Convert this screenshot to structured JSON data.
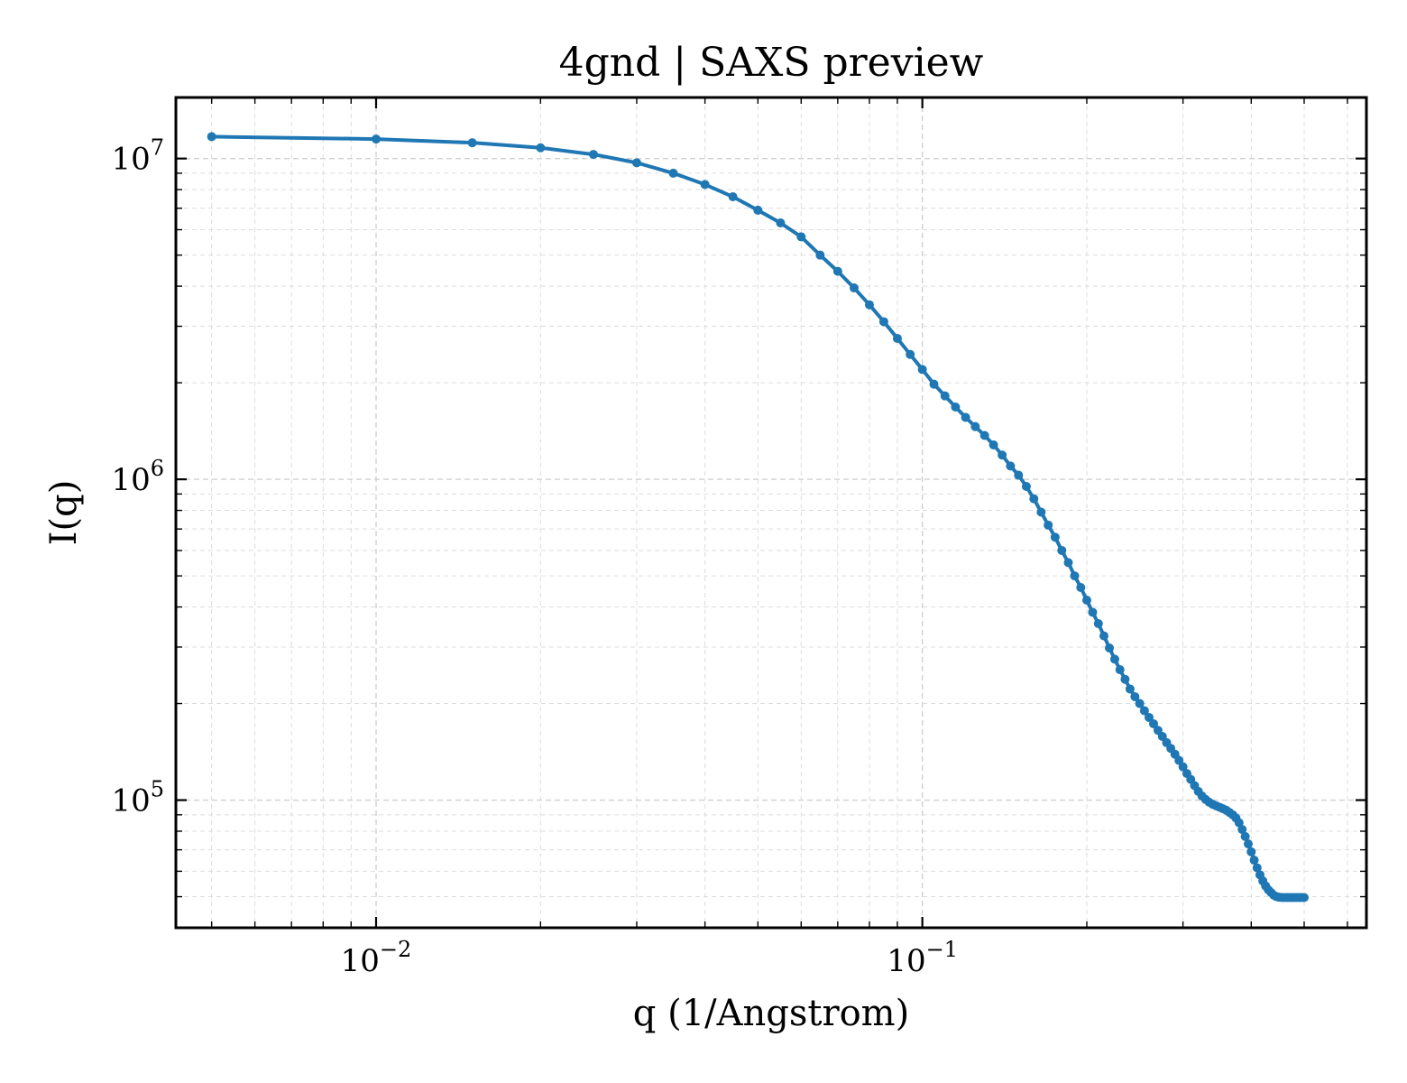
{
  "chart_data": {
    "type": "line",
    "title": "4gnd | SAXS preview",
    "xlabel": "q (1/Angstrom)",
    "ylabel": "I(q)",
    "x_scale": "log",
    "y_scale": "log",
    "xlim": [
      0.0043,
      0.65
    ],
    "ylim": [
      40000,
      15500000
    ],
    "grid": true,
    "legend": "none",
    "line_color": "#1f77b4",
    "x_ticks": [
      {
        "value": 0.01,
        "base": "10",
        "exp": "−2"
      },
      {
        "value": 0.1,
        "base": "10",
        "exp": "−1"
      }
    ],
    "y_ticks": [
      {
        "value": 100000,
        "base": "10",
        "exp": "5"
      },
      {
        "value": 1000000,
        "base": "10",
        "exp": "6"
      },
      {
        "value": 10000000,
        "base": "10",
        "exp": "7"
      }
    ],
    "series": [
      {
        "marker": "circle",
        "x": [
          0.005,
          0.01,
          0.015,
          0.02,
          0.025,
          0.03,
          0.035,
          0.04,
          0.045,
          0.05,
          0.055,
          0.06,
          0.065,
          0.07,
          0.075,
          0.08,
          0.085,
          0.09,
          0.095,
          0.1,
          0.105,
          0.11,
          0.115,
          0.12,
          0.125,
          0.13,
          0.135,
          0.14,
          0.145,
          0.15,
          0.155,
          0.16,
          0.165,
          0.17,
          0.175,
          0.18,
          0.185,
          0.19,
          0.195,
          0.2,
          0.205,
          0.21,
          0.215,
          0.22,
          0.225,
          0.23,
          0.235,
          0.24,
          0.245,
          0.25,
          0.255,
          0.26,
          0.265,
          0.27,
          0.275,
          0.28,
          0.285,
          0.29,
          0.295,
          0.3,
          0.305,
          0.31,
          0.315,
          0.32,
          0.325,
          0.33,
          0.335,
          0.34,
          0.345,
          0.35,
          0.355,
          0.36,
          0.365,
          0.37,
          0.375,
          0.38,
          0.385,
          0.39,
          0.395,
          0.4,
          0.405,
          0.41,
          0.415,
          0.42,
          0.425,
          0.43,
          0.435,
          0.44,
          0.445,
          0.45,
          0.455,
          0.46,
          0.465,
          0.47,
          0.475,
          0.48,
          0.485,
          0.49,
          0.495,
          0.5
        ],
        "y": [
          11700000,
          11500000,
          11200000,
          10800000,
          10300000,
          9700000,
          9000000,
          8300000,
          7600000,
          6900000,
          6300000,
          5700000,
          5000000,
          4450000,
          3950000,
          3500000,
          3100000,
          2750000,
          2450000,
          2200000,
          1980000,
          1820000,
          1680000,
          1560000,
          1460000,
          1370000,
          1280000,
          1190000,
          1100000,
          1030000,
          950000,
          870000,
          790000,
          720000,
          660000,
          600000,
          550000,
          500000,
          460000,
          420000,
          385000,
          355000,
          325000,
          298000,
          275000,
          255000,
          238000,
          222000,
          210000,
          200000,
          190000,
          181000,
          173000,
          165000,
          158000,
          151000,
          145000,
          139000,
          133000,
          127000,
          121000,
          116000,
          111000,
          106500,
          103000,
          100500,
          98500,
          97000,
          96000,
          95000,
          94000,
          93000,
          91500,
          90000,
          88000,
          85000,
          81000,
          77000,
          73000,
          69000,
          65000,
          61500,
          58500,
          56000,
          54000,
          52500,
          51500,
          50500,
          50000,
          49800,
          49700,
          49700,
          49700,
          49700,
          49700,
          49700,
          49700,
          49700,
          49700,
          49700
        ]
      }
    ]
  }
}
